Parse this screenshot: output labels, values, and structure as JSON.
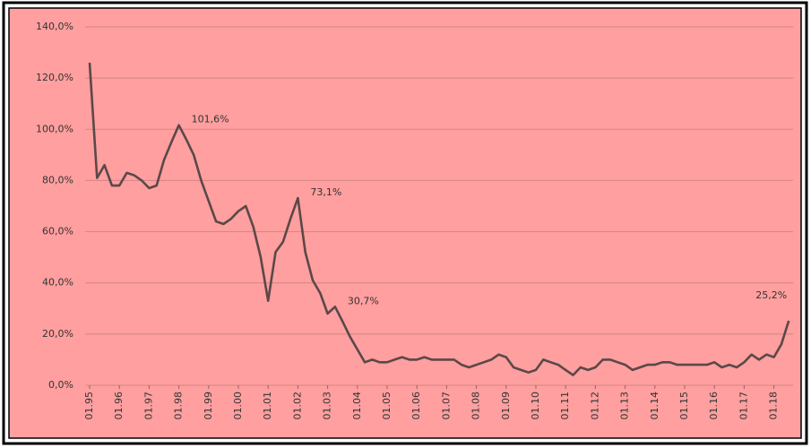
{
  "chart_data": {
    "type": "line",
    "categories": [
      "01.95",
      null,
      null,
      null,
      "01.96",
      null,
      null,
      null,
      "01.97",
      null,
      null,
      null,
      "01.98",
      null,
      null,
      null,
      "01.99",
      null,
      null,
      null,
      "01.00",
      null,
      null,
      null,
      "01.01",
      null,
      null,
      null,
      "01.02",
      null,
      null,
      null,
      "01.03",
      null,
      null,
      null,
      "01.04",
      null,
      null,
      null,
      "01.05",
      null,
      null,
      null,
      "01.06",
      null,
      null,
      null,
      "01.07",
      null,
      null,
      null,
      "01.08",
      null,
      null,
      null,
      "01.09",
      null,
      null,
      null,
      "01.10",
      null,
      null,
      null,
      "01.11",
      null,
      null,
      null,
      "01.12",
      null,
      null,
      null,
      "01.13",
      null,
      null,
      null,
      "01.14",
      null,
      null,
      null,
      "01.15",
      null,
      null,
      null,
      "01.16",
      null,
      null,
      null,
      "01.17",
      null,
      null,
      null,
      "01.18",
      null,
      null
    ],
    "values": [
      126,
      81,
      86,
      78,
      78,
      83,
      82,
      80,
      77,
      78,
      88,
      95,
      101.6,
      96,
      90,
      80,
      72,
      64,
      63,
      65,
      68,
      70,
      62,
      50,
      33,
      52,
      56,
      65,
      73.1,
      52,
      41,
      36,
      28,
      30.7,
      25,
      19,
      14,
      9,
      10,
      9,
      9,
      10,
      11,
      10,
      10,
      11,
      10,
      10,
      10,
      10,
      8,
      7,
      8,
      9,
      10,
      12,
      11,
      7,
      6,
      5,
      6,
      10,
      9,
      8,
      6,
      4,
      7,
      6,
      7,
      10,
      10,
      9,
      8,
      6,
      7,
      8,
      8,
      9,
      9,
      8,
      8,
      8,
      8,
      8,
      9,
      7,
      8,
      7,
      9,
      12,
      10,
      12,
      11,
      16,
      25.2
    ],
    "value_labels": [
      null,
      null,
      null,
      null,
      null,
      null,
      null,
      null,
      null,
      null,
      null,
      null,
      "101,6%",
      null,
      null,
      null,
      null,
      null,
      null,
      null,
      null,
      null,
      null,
      null,
      null,
      null,
      null,
      null,
      "73,1%",
      null,
      null,
      null,
      null,
      "30,7%",
      null,
      null,
      null,
      null,
      null,
      null,
      null,
      null,
      null,
      null,
      null,
      null,
      null,
      null,
      null,
      null,
      null,
      null,
      null,
      null,
      null,
      null,
      null,
      null,
      null,
      null,
      null,
      null,
      null,
      null,
      null,
      null,
      null,
      null,
      null,
      null,
      null,
      null,
      null,
      null,
      null,
      null,
      null,
      null,
      null,
      null,
      null,
      null,
      null,
      null,
      null,
      null,
      null,
      null,
      null,
      null,
      null,
      null,
      null,
      null,
      "25,2%"
    ],
    "color": "#5b4848",
    "ylim": [
      0,
      140
    ],
    "yticks": [
      {
        "value": 0,
        "label": "0,0%"
      },
      {
        "value": 20,
        "label": "20,0%"
      },
      {
        "value": 40,
        "label": "40,0%"
      },
      {
        "value": 60,
        "label": "60,0%"
      },
      {
        "value": 80,
        "label": "80,0%"
      },
      {
        "value": 100,
        "label": "100,0%"
      },
      {
        "value": 120,
        "label": "120,0%"
      },
      {
        "value": 140,
        "label": "140,0%"
      }
    ],
    "grid": true
  }
}
